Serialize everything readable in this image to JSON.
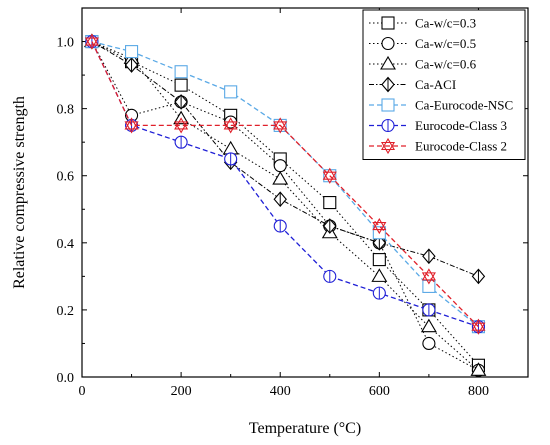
{
  "chart_data": {
    "type": "line",
    "xlabel": "Temperature (°C)",
    "ylabel": "Relative compressive strength",
    "xlim": [
      0,
      900
    ],
    "ylim": [
      0.0,
      1.1
    ],
    "xticks": [
      "0",
      "200",
      "400",
      "600",
      "800"
    ],
    "yticks": [
      "0.0",
      "0.2",
      "0.4",
      "0.6",
      "0.8",
      "1.0"
    ],
    "grid": false,
    "legend_position": "top-right",
    "series": [
      {
        "name": "Ca-w/c=0.3",
        "marker": "square",
        "color": "#000000",
        "dash": "dotted",
        "x": [
          20,
          100,
          200,
          300,
          400,
          500,
          600,
          700,
          800
        ],
        "y": [
          1.0,
          0.94,
          0.87,
          0.78,
          0.65,
          0.52,
          0.35,
          0.2,
          0.035
        ]
      },
      {
        "name": "Ca-w/c=0.5",
        "marker": "circle",
        "color": "#000000",
        "dash": "dotted",
        "x": [
          20,
          100,
          200,
          300,
          400,
          500,
          600,
          700,
          800
        ],
        "y": [
          1.0,
          0.78,
          0.82,
          0.76,
          0.63,
          0.45,
          0.4,
          0.1,
          0.02
        ]
      },
      {
        "name": "Ca-w/c=0.6",
        "marker": "triangle",
        "color": "#000000",
        "dash": "dotted",
        "x": [
          20,
          100,
          200,
          300,
          400,
          500,
          600,
          700,
          800
        ],
        "y": [
          1.0,
          0.95,
          0.77,
          0.68,
          0.59,
          0.43,
          0.3,
          0.15,
          0.02
        ]
      },
      {
        "name": "Ca-ACI",
        "marker": "diamond",
        "color": "#000000",
        "dash": "dashdot",
        "x": [
          20,
          100,
          200,
          300,
          400,
          500,
          600,
          700,
          800
        ],
        "y": [
          1.0,
          0.93,
          0.82,
          0.64,
          0.53,
          0.45,
          0.4,
          0.36,
          0.3
        ]
      },
      {
        "name": "Ca-Eurocode-NSC",
        "marker": "square",
        "color": "#5aa9e6",
        "dash": "dashed",
        "x": [
          20,
          100,
          200,
          300,
          400,
          500,
          600,
          700,
          800
        ],
        "y": [
          1.0,
          0.97,
          0.91,
          0.85,
          0.75,
          0.6,
          0.43,
          0.27,
          0.15
        ]
      },
      {
        "name": "Eurocode-Class 3",
        "marker": "circle",
        "color": "#1f1fd6",
        "dash": "dashed",
        "x": [
          20,
          100,
          200,
          300,
          400,
          500,
          600,
          700,
          800
        ],
        "y": [
          1.0,
          0.75,
          0.7,
          0.65,
          0.45,
          0.3,
          0.25,
          0.2,
          0.15
        ]
      },
      {
        "name": "Eurocode-Class 2",
        "marker": "star",
        "color": "#e0202a",
        "dash": "dashed",
        "x": [
          20,
          100,
          200,
          300,
          400,
          500,
          600,
          700,
          800
        ],
        "y": [
          1.0,
          0.75,
          0.75,
          0.75,
          0.75,
          0.6,
          0.45,
          0.3,
          0.15
        ]
      }
    ]
  }
}
